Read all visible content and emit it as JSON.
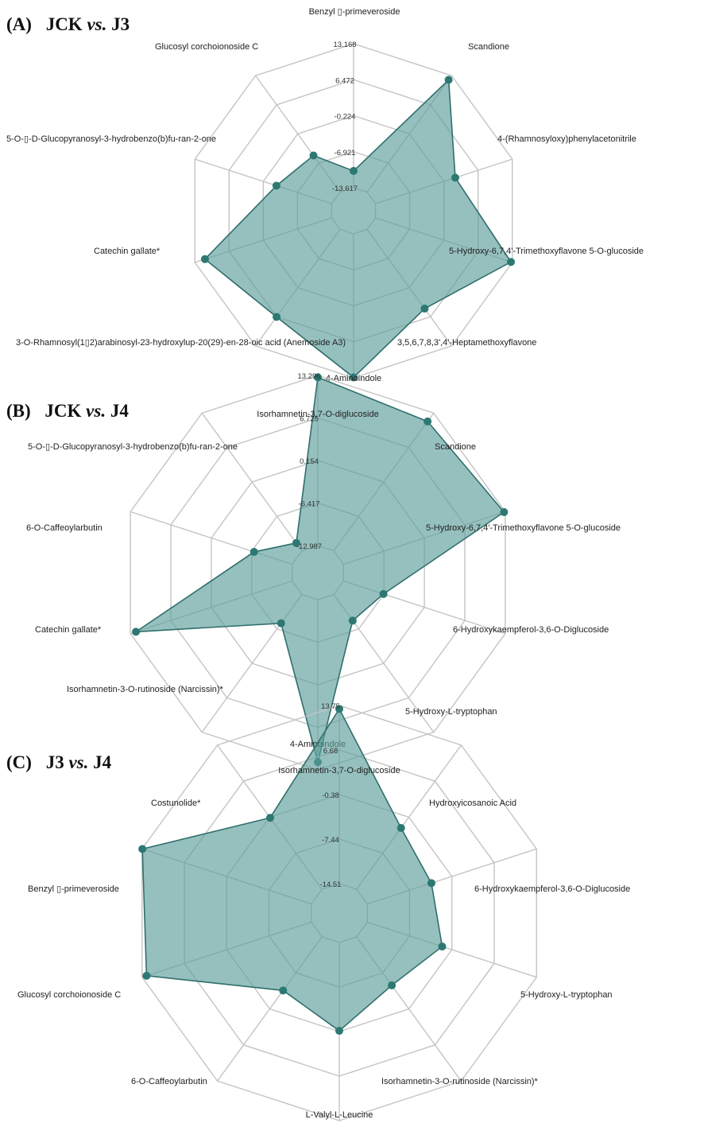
{
  "chart_data": [
    {
      "type": "radar",
      "panel_label": "(A)",
      "group_a": "JCK",
      "vs_text": "vs.",
      "group_b": "J3",
      "axis_ticks": [
        "13.168",
        "6.472",
        "-0.224",
        "-6.921",
        "-13.617"
      ],
      "range": [
        -13.617,
        13.168
      ],
      "axes": [
        "Benzyl ▯-primeveroside",
        "Scandione",
        "4-(Rhamnosyloxy)phenylacetonitrile",
        "5-Hydroxy-6,7,4'-Trimethoxyflavone 5-O-glucoside",
        "3,5,6,7,8,3',4'-Heptamethoxyflavone",
        "4-Aminoindole",
        "3-O-Rhamnosyl(1▯2)arabinosyl-23-hydroxylup-20(29)-en-28-oic acid (Anemoside A3)",
        "Catechin gallate*",
        "5-O-▯-D-Glucopyranosyl-3-hydrobenzo(b)fu-ran-2-one",
        "Glucosyl corchoionoside C"
      ],
      "values": [
        -10.5,
        12.2,
        2.0,
        12.9,
        4.6,
        13.1,
        6.5,
        11.2,
        -2.8,
        -5.2
      ]
    },
    {
      "type": "radar",
      "panel_label": "(B)",
      "group_a": "JCK",
      "vs_text": "vs.",
      "group_b": "J4",
      "axis_ticks": [
        "13.296",
        "6.725",
        "0.154",
        "-6.417",
        "-12.987"
      ],
      "range": [
        -12.987,
        13.296
      ],
      "axes": [
        "Isorhamnetin-3,7-O-diglucoside",
        "Scandione",
        "5-Hydroxy-6,7,4'-Trimethoxyflavone 5-O-glucoside",
        "6-Hydroxykaempferol-3,6-O-Diglucoside",
        "5-Hydroxy-L-tryptophan",
        "4-Aminoindole",
        "Isorhamnetin-3-O-rutinoside (Narcissin)*",
        "Catechin gallate*",
        "6-O-Caffeoylarbutin",
        "5-O-▯-D-Glucopyranosyl-3-hydrobenzo(b)fu-ran-2-one"
      ],
      "values": [
        13.0,
        11.7,
        13.1,
        -6.5,
        -8.0,
        12.1,
        -7.5,
        12.4,
        -6.8,
        -11.5
      ]
    },
    {
      "type": "radar",
      "panel_label": "(C)",
      "group_a": "J3",
      "vs_text": "vs.",
      "group_b": "J4",
      "axis_ticks": [
        "13.75",
        "6.68",
        "-0.38",
        "-7.44",
        "-14.51"
      ],
      "range": [
        -14.51,
        13.75
      ],
      "axes": [
        "Isorhamnetin-3,7-O-diglucoside",
        "Hydroxyicosanoic Acid",
        "6-Hydroxykaempferol-3,6-O-Diglucoside",
        "5-Hydroxy-L-tryptophan",
        "Isorhamnetin-3-O-rutinoside (Narcissin)*",
        "L-Valyl-L-Leucine",
        "6-O-Caffeoylarbutin",
        "Glucosyl corchoionoside C",
        "Benzyl ▯-primeveroside",
        "Costunolide*"
      ],
      "values": [
        13.2,
        -2.5,
        -3.8,
        -2.0,
        -5.0,
        -0.5,
        -4.0,
        13.0,
        13.7,
        -0.5
      ]
    }
  ],
  "colors": {
    "fill": "#5e9e9b",
    "line": "#2f6f6b",
    "marker": "#2d7873",
    "grid": "#c4c4c4"
  }
}
